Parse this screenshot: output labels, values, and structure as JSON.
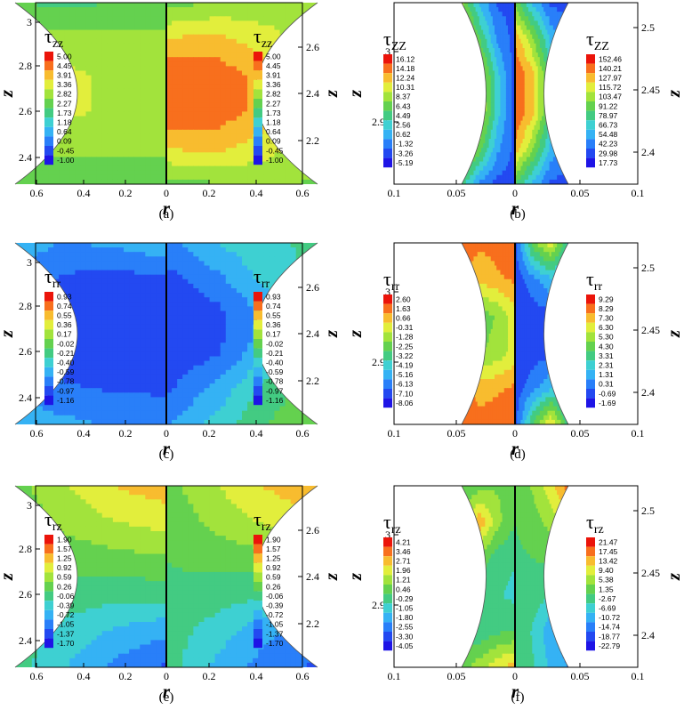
{
  "chart_data": [
    {
      "type": "contour",
      "panel": "(a)",
      "xlabel": "r",
      "ylabel_right": "z",
      "ylabel_left": "z",
      "x_ticks": [
        "0.6",
        "0.4",
        "0.2",
        "0",
        "0.2",
        "0.4",
        "0.6"
      ],
      "y_ticks_left": [
        "3",
        "2.8",
        "2.6",
        "2.4"
      ],
      "y_ticks_right": [
        "2.6",
        "2.4",
        "2.2"
      ],
      "left_legend": {
        "symbol": "τ",
        "sub": "zz",
        "levels": [
          "5.00",
          "4.45",
          "3.91",
          "3.36",
          "2.82",
          "2.27",
          "1.73",
          "1.18",
          "0.64",
          "0.09",
          "-0.45",
          "-1.00"
        ]
      },
      "right_legend": {
        "symbol": "τ",
        "sub": "zz",
        "levels": [
          "5.00",
          "4.45",
          "3.91",
          "3.36",
          "2.82",
          "2.27",
          "1.73",
          "1.18",
          "0.64",
          "0.09",
          "-0.45",
          "-1.00"
        ]
      },
      "left_field": [
        [
          0.55,
          0.5,
          0.48,
          0.5
        ],
        [
          0.6,
          0.62,
          0.64,
          0.62
        ],
        [
          0.62,
          0.66,
          0.7,
          0.68
        ],
        [
          0.62,
          0.66,
          0.7,
          0.68
        ],
        [
          0.6,
          0.62,
          0.62,
          0.6
        ],
        [
          0.55,
          0.52,
          0.5,
          0.52
        ]
      ],
      "right_field": [
        [
          0.55,
          0.6,
          0.62,
          0.6
        ],
        [
          0.78,
          0.8,
          0.72,
          0.62
        ],
        [
          0.95,
          0.92,
          0.82,
          0.62
        ],
        [
          0.95,
          0.92,
          0.82,
          0.62
        ],
        [
          0.78,
          0.8,
          0.72,
          0.62
        ],
        [
          0.55,
          0.58,
          0.6,
          0.58
        ]
      ]
    },
    {
      "type": "contour",
      "panel": "(b)",
      "xlabel": "r",
      "ylabel_right": "z",
      "ylabel_left": "z",
      "x_ticks": [
        "0.1",
        "0.05",
        "0",
        "0.05",
        "0.1"
      ],
      "y_ticks_left": [
        "3",
        "2.95"
      ],
      "y_ticks_right": [
        "2.5",
        "2.45",
        "2.4"
      ],
      "left_legend": {
        "symbol": "τ",
        "sub": "ZZ",
        "levels": [
          "16.12",
          "14.18",
          "12.24",
          "10.31",
          "8.37",
          "6.43",
          "4.49",
          "2.56",
          "0.62",
          "-1.32",
          "-3.26",
          "-5.19"
        ]
      },
      "right_legend": {
        "symbol": "τ",
        "sub": "ZZ",
        "levels": [
          "152.46",
          "140.21",
          "127.97",
          "115.72",
          "103.47",
          "91.22",
          "78.97",
          "66.73",
          "54.48",
          "42.23",
          "29.98",
          "17.73"
        ]
      },
      "left_field": [
        [
          0.12,
          0.12,
          0.3,
          0.6
        ],
        [
          0.1,
          0.2,
          0.5,
          0.75
        ],
        [
          0.08,
          0.35,
          0.7,
          0.9
        ],
        [
          0.08,
          0.35,
          0.72,
          0.92
        ],
        [
          0.1,
          0.25,
          0.55,
          0.8
        ],
        [
          0.1,
          0.1,
          0.2,
          0.45
        ]
      ],
      "right_field": [
        [
          0.55,
          0.3,
          0.12,
          0.1
        ],
        [
          0.85,
          0.6,
          0.3,
          0.15
        ],
        [
          0.95,
          0.8,
          0.45,
          0.2
        ],
        [
          0.95,
          0.8,
          0.45,
          0.2
        ],
        [
          0.85,
          0.6,
          0.3,
          0.15
        ],
        [
          0.5,
          0.3,
          0.12,
          0.1
        ]
      ]
    },
    {
      "type": "contour",
      "panel": "(c)",
      "xlabel": "r",
      "ylabel_right": "z",
      "ylabel_left": "z",
      "x_ticks": [
        "0.6",
        "0.4",
        "0.2",
        "0",
        "0.2",
        "0.4",
        "0.6"
      ],
      "y_ticks_left": [
        "3",
        "2.8",
        "2.6",
        "2.4"
      ],
      "y_ticks_right": [
        "2.6",
        "2.4",
        "2.2"
      ],
      "left_legend": {
        "symbol": "τ",
        "sub": "rr",
        "levels": [
          "0.93",
          "0.74",
          "0.55",
          "0.36",
          "0.17",
          "-0.02",
          "-0.21",
          "-0.40",
          "-0.59",
          "-0.78",
          "-0.97",
          "-1.16"
        ]
      },
      "right_legend": {
        "symbol": "τ",
        "sub": "rr",
        "levels": [
          "0.93",
          "0.74",
          "0.55",
          "0.36",
          "0.17",
          "-0.02",
          "-0.21",
          "-0.40",
          "-0.59",
          "-0.78",
          "-0.97",
          "-1.16"
        ]
      },
      "left_field": [
        [
          0.3,
          0.25,
          0.22,
          0.28
        ],
        [
          0.12,
          0.1,
          0.12,
          0.2
        ],
        [
          0.05,
          0.05,
          0.06,
          0.1
        ],
        [
          0.05,
          0.05,
          0.06,
          0.1
        ],
        [
          0.12,
          0.12,
          0.15,
          0.22
        ],
        [
          0.2,
          0.22,
          0.25,
          0.28
        ]
      ],
      "right_field": [
        [
          0.2,
          0.32,
          0.4,
          0.42
        ],
        [
          0.1,
          0.2,
          0.35,
          0.45
        ],
        [
          0.05,
          0.1,
          0.25,
          0.45
        ],
        [
          0.05,
          0.12,
          0.3,
          0.48
        ],
        [
          0.12,
          0.25,
          0.45,
          0.55
        ],
        [
          0.22,
          0.35,
          0.5,
          0.58
        ]
      ]
    },
    {
      "type": "contour",
      "panel": "(d)",
      "xlabel": "r",
      "ylabel_right": "z",
      "ylabel_left": "z",
      "x_ticks": [
        "0.1",
        "0.05",
        "0",
        "0.05",
        "0.1"
      ],
      "y_ticks_left": [
        "3",
        "2.95"
      ],
      "y_ticks_right": [
        "2.5",
        "2.45",
        "2.4"
      ],
      "left_legend": {
        "symbol": "τ",
        "sub": "rr",
        "levels": [
          "2.60",
          "1.63",
          "0.66",
          "-0.31",
          "-1.28",
          "-2.25",
          "-3.22",
          "-4.19",
          "-5.16",
          "-6.13",
          "-7.10",
          "-8.06"
        ]
      },
      "right_legend": {
        "symbol": "τ",
        "sub": "rr",
        "levels": [
          "9.29",
          "8.29",
          "7.30",
          "6.30",
          "5.30",
          "4.30",
          "3.31",
          "2.31",
          "1.31",
          "0.31",
          "-0.69",
          "-1.69"
        ]
      },
      "left_field": [
        [
          0.92,
          0.9,
          0.88,
          0.92
        ],
        [
          0.88,
          0.85,
          0.8,
          0.88
        ],
        [
          0.75,
          0.6,
          0.55,
          0.7
        ],
        [
          0.72,
          0.62,
          0.58,
          0.7
        ],
        [
          0.88,
          0.85,
          0.82,
          0.9
        ],
        [
          0.95,
          0.92,
          0.9,
          0.95
        ]
      ],
      "right_field": [
        [
          0.1,
          0.55,
          0.75,
          0.4
        ],
        [
          0.08,
          0.2,
          0.3,
          0.25
        ],
        [
          0.06,
          0.08,
          0.12,
          0.15
        ],
        [
          0.06,
          0.08,
          0.12,
          0.15
        ],
        [
          0.08,
          0.2,
          0.3,
          0.25
        ],
        [
          0.1,
          0.5,
          0.8,
          0.45
        ]
      ]
    },
    {
      "type": "contour",
      "panel": "(e)",
      "xlabel": "r",
      "ylabel_right": "z",
      "ylabel_left": "z",
      "x_ticks": [
        "0.6",
        "0.4",
        "0.2",
        "0",
        "0.2",
        "0.4",
        "0.6"
      ],
      "y_ticks_left": [
        "3",
        "2.8",
        "2.6",
        "2.4"
      ],
      "y_ticks_right": [
        "2.6",
        "2.4",
        "2.2"
      ],
      "left_legend": {
        "symbol": "τ",
        "sub": "rz",
        "levels": [
          "1.90",
          "1.57",
          "1.25",
          "0.92",
          "0.59",
          "0.26",
          "-0.06",
          "-0.39",
          "-0.72",
          "-1.05",
          "-1.37",
          "-1.70"
        ]
      },
      "right_legend": {
        "symbol": "τ",
        "sub": "rz",
        "levels": [
          "1.90",
          "1.57",
          "1.25",
          "0.92",
          "0.59",
          "0.26",
          "-0.06",
          "-0.39",
          "-0.72",
          "-1.05",
          "-1.37",
          "-1.70"
        ]
      },
      "left_field": [
        [
          0.82,
          0.78,
          0.68,
          0.55
        ],
        [
          0.72,
          0.68,
          0.62,
          0.52
        ],
        [
          0.58,
          0.56,
          0.53,
          0.5
        ],
        [
          0.45,
          0.44,
          0.46,
          0.49
        ],
        [
          0.25,
          0.3,
          0.38,
          0.46
        ],
        [
          0.12,
          0.2,
          0.32,
          0.45
        ]
      ],
      "right_field": [
        [
          0.55,
          0.68,
          0.78,
          0.85
        ],
        [
          0.52,
          0.62,
          0.7,
          0.74
        ],
        [
          0.5,
          0.53,
          0.56,
          0.58
        ],
        [
          0.49,
          0.46,
          0.42,
          0.4
        ],
        [
          0.46,
          0.36,
          0.25,
          0.2
        ],
        [
          0.45,
          0.3,
          0.18,
          0.12
        ]
      ]
    },
    {
      "type": "contour",
      "panel": "(f)",
      "xlabel": "r",
      "ylabel_right": "z",
      "ylabel_left": "z",
      "x_ticks": [
        "0.1",
        "0.05",
        "0",
        "0.05",
        "0.1"
      ],
      "y_ticks_left": [
        "3",
        "2.95"
      ],
      "y_ticks_right": [
        "2.5",
        "2.45",
        "2.4"
      ],
      "left_legend": {
        "symbol": "τ",
        "sub": "rz",
        "levels": [
          "4.21",
          "3.46",
          "2.71",
          "1.96",
          "1.21",
          "0.46",
          "-0.29",
          "-1.05",
          "-1.80",
          "-2.55",
          "-3.30",
          "-4.05"
        ]
      },
      "right_legend": {
        "symbol": "τ",
        "sub": "rz",
        "levels": [
          "21.47",
          "17.45",
          "13.42",
          "9.40",
          "5.38",
          "1.35",
          "-2.67",
          "-6.69",
          "-10.72",
          "-14.74",
          "-18.77",
          "-22.79"
        ]
      },
      "left_field": [
        [
          0.55,
          0.58,
          0.55,
          0.5
        ],
        [
          0.5,
          0.62,
          0.85,
          0.6
        ],
        [
          0.42,
          0.45,
          0.55,
          0.5
        ],
        [
          0.38,
          0.42,
          0.48,
          0.5
        ],
        [
          0.5,
          0.48,
          0.42,
          0.45
        ],
        [
          0.82,
          0.75,
          0.65,
          0.55
        ]
      ],
      "right_field": [
        [
          0.55,
          0.6,
          0.75,
          0.9
        ],
        [
          0.5,
          0.55,
          0.62,
          0.72
        ],
        [
          0.48,
          0.5,
          0.52,
          0.55
        ],
        [
          0.48,
          0.46,
          0.42,
          0.4
        ],
        [
          0.48,
          0.4,
          0.25,
          0.15
        ],
        [
          0.5,
          0.42,
          0.3,
          0.22
        ]
      ]
    }
  ]
}
